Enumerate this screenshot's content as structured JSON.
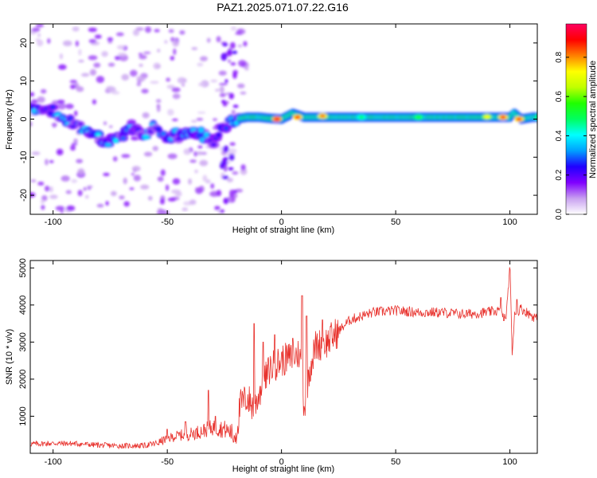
{
  "figure_title": "PAZ1.2025.071.07.22.G16",
  "chart_data": [
    {
      "type": "heatmap",
      "title": "PAZ1.2025.071.07.22.G16",
      "xlabel": "Height of straight line (km)",
      "ylabel": "Frequency (Hz)",
      "xlim": [
        -110,
        112
      ],
      "ylim": [
        -25,
        25
      ],
      "x_ticks": [
        -100,
        -50,
        0,
        50,
        100
      ],
      "y_ticks": [
        -20,
        -10,
        0,
        10,
        20
      ],
      "grid": false,
      "colorbar": {
        "label": "Normalized spectral amplitude",
        "range": [
          0,
          0.97
        ],
        "ticks": [
          0.0,
          0.2,
          0.4,
          0.6,
          0.8
        ],
        "colors": [
          "#ffffff",
          "#c8a0f0",
          "#8000ff",
          "#2000ff",
          "#00a0ff",
          "#00ffff",
          "#00ff60",
          "#20ff00",
          "#c0ff00",
          "#ffff00",
          "#ff8000",
          "#ff0000",
          "#ff0060"
        ]
      },
      "ridge": [
        {
          "x": -110,
          "y": 3.0
        },
        {
          "x": -105,
          "y": 2.5
        },
        {
          "x": -100,
          "y": 2.0
        },
        {
          "x": -95,
          "y": 0.5
        },
        {
          "x": -90,
          "y": -2.0
        },
        {
          "x": -85,
          "y": -3.0
        },
        {
          "x": -80,
          "y": -5.0
        },
        {
          "x": -75,
          "y": -6.0
        },
        {
          "x": -70,
          "y": -4.0
        },
        {
          "x": -65,
          "y": -3.0
        },
        {
          "x": -60,
          "y": -4.0
        },
        {
          "x": -55,
          "y": -2.0
        },
        {
          "x": -50,
          "y": -5.0
        },
        {
          "x": -45,
          "y": -4.0
        },
        {
          "x": -40,
          "y": -3.0
        },
        {
          "x": -35,
          "y": -4.0
        },
        {
          "x": -30,
          "y": -6.0
        },
        {
          "x": -25,
          "y": -2.0
        },
        {
          "x": -20,
          "y": 0.0
        },
        {
          "x": -15,
          "y": 0.5
        },
        {
          "x": -10,
          "y": 0.5
        },
        {
          "x": -5,
          "y": 0.2
        },
        {
          "x": 0,
          "y": 0.0
        },
        {
          "x": 5,
          "y": 1.5
        },
        {
          "x": 10,
          "y": 0.5
        },
        {
          "x": 15,
          "y": 0.5
        },
        {
          "x": 20,
          "y": 0.5
        },
        {
          "x": 30,
          "y": 0.5
        },
        {
          "x": 40,
          "y": 0.5
        },
        {
          "x": 50,
          "y": 0.5
        },
        {
          "x": 60,
          "y": 0.5
        },
        {
          "x": 70,
          "y": 0.5
        },
        {
          "x": 80,
          "y": 0.5
        },
        {
          "x": 90,
          "y": 0.5
        },
        {
          "x": 100,
          "y": 0.5
        },
        {
          "x": 102,
          "y": 1.5
        },
        {
          "x": 105,
          "y": 0.0
        },
        {
          "x": 110,
          "y": 0.5
        }
      ],
      "peaks": [
        {
          "x": -2,
          "y": 0.0,
          "amplitude": 0.95
        },
        {
          "x": 7,
          "y": 0.5,
          "amplitude": 0.9
        },
        {
          "x": 18,
          "y": 0.8,
          "amplitude": 0.85
        },
        {
          "x": 97,
          "y": 0.5,
          "amplitude": 0.9
        },
        {
          "x": 104,
          "y": 0.0,
          "amplitude": 0.9
        },
        {
          "x": 90,
          "y": 0.6,
          "amplitude": 0.75
        },
        {
          "x": 60,
          "y": 0.5,
          "amplitude": 0.55
        },
        {
          "x": 35,
          "y": 0.5,
          "amplitude": 0.5
        }
      ]
    },
    {
      "type": "line",
      "xlabel": "Height of straight line (km)",
      "ylabel": "SNR (10 * v/v)",
      "xlim": [
        -110,
        112
      ],
      "ylim": [
        0,
        5200
      ],
      "x_ticks": [
        -100,
        -50,
        0,
        50,
        100
      ],
      "y_ticks": [
        1000,
        2000,
        3000,
        4000,
        5000
      ],
      "color": "#e8322d",
      "grid": false,
      "points": [
        {
          "x": -110,
          "y": 250
        },
        {
          "x": -100,
          "y": 270
        },
        {
          "x": -90,
          "y": 260
        },
        {
          "x": -80,
          "y": 220
        },
        {
          "x": -70,
          "y": 200
        },
        {
          "x": -60,
          "y": 210
        },
        {
          "x": -55,
          "y": 260
        },
        {
          "x": -50,
          "y": 400
        },
        {
          "x": -45,
          "y": 480
        },
        {
          "x": -40,
          "y": 520
        },
        {
          "x": -35,
          "y": 600
        },
        {
          "x": -30,
          "y": 700
        },
        {
          "x": -25,
          "y": 650
        },
        {
          "x": -20,
          "y": 500
        },
        {
          "x": -18,
          "y": 1300
        },
        {
          "x": -15,
          "y": 1500
        },
        {
          "x": -12,
          "y": 1200
        },
        {
          "x": -10,
          "y": 1600
        },
        {
          "x": -5,
          "y": 2300
        },
        {
          "x": 0,
          "y": 2500
        },
        {
          "x": 5,
          "y": 2600
        },
        {
          "x": 8,
          "y": 2700
        },
        {
          "x": 10,
          "y": 1200
        },
        {
          "x": 12,
          "y": 2200
        },
        {
          "x": 15,
          "y": 2900
        },
        {
          "x": 20,
          "y": 3000
        },
        {
          "x": 25,
          "y": 3300
        },
        {
          "x": 30,
          "y": 3600
        },
        {
          "x": 35,
          "y": 3700
        },
        {
          "x": 40,
          "y": 3800
        },
        {
          "x": 50,
          "y": 3850
        },
        {
          "x": 60,
          "y": 3800
        },
        {
          "x": 70,
          "y": 3800
        },
        {
          "x": 80,
          "y": 3750
        },
        {
          "x": 90,
          "y": 3800
        },
        {
          "x": 95,
          "y": 3850
        },
        {
          "x": 98,
          "y": 3600
        },
        {
          "x": 99,
          "y": 4100
        },
        {
          "x": 100,
          "y": 5200
        },
        {
          "x": 101,
          "y": 2600
        },
        {
          "x": 102,
          "y": 3800
        },
        {
          "x": 105,
          "y": 3900
        },
        {
          "x": 110,
          "y": 3700
        },
        {
          "x": 112,
          "y": 3650
        }
      ],
      "spikes": [
        {
          "x": -50,
          "y": 650
        },
        {
          "x": -42,
          "y": 850
        },
        {
          "x": -32,
          "y": 1700
        },
        {
          "x": -29,
          "y": 1000
        },
        {
          "x": -21,
          "y": 300
        },
        {
          "x": -12,
          "y": 3500
        },
        {
          "x": -8,
          "y": 3000
        },
        {
          "x": -3,
          "y": 3200
        },
        {
          "x": 5,
          "y": 3100
        },
        {
          "x": 9,
          "y": 4250
        },
        {
          "x": 11,
          "y": 3700
        },
        {
          "x": 18,
          "y": 3600
        },
        {
          "x": 96,
          "y": 4200
        },
        {
          "x": 103,
          "y": 4150
        }
      ]
    }
  ]
}
